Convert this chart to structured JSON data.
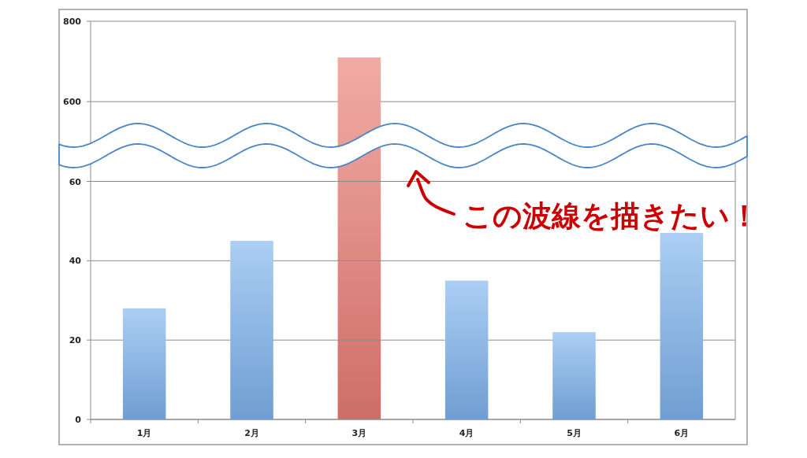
{
  "chart_data": [
    {
      "type": "bar",
      "categories": [
        null,
        null,
        null,
        null,
        null,
        null
      ],
      "values": [
        null,
        null,
        710,
        null,
        null,
        null
      ],
      "color": "#ea7d74",
      "ylim": [
        520,
        800
      ],
      "yticks": [
        600,
        800
      ],
      "grid": "y",
      "tick_labels": "y"
    },
    {
      "type": "bar",
      "categories": [
        "1月",
        "2月",
        "3月",
        "4月",
        "5月",
        "6月"
      ],
      "values": [
        28,
        45,
        null,
        35,
        22,
        47
      ],
      "colors": [
        "#7eb3ee",
        "#7eb3ee",
        null,
        "#7eb3ee",
        "#7eb3ee",
        "#7eb3ee"
      ],
      "ylim": [
        0,
        72
      ],
      "yticks": [
        0,
        20,
        40,
        60
      ],
      "grid": "y",
      "annotations": [
        "この波線を描きたい！"
      ]
    }
  ]
}
